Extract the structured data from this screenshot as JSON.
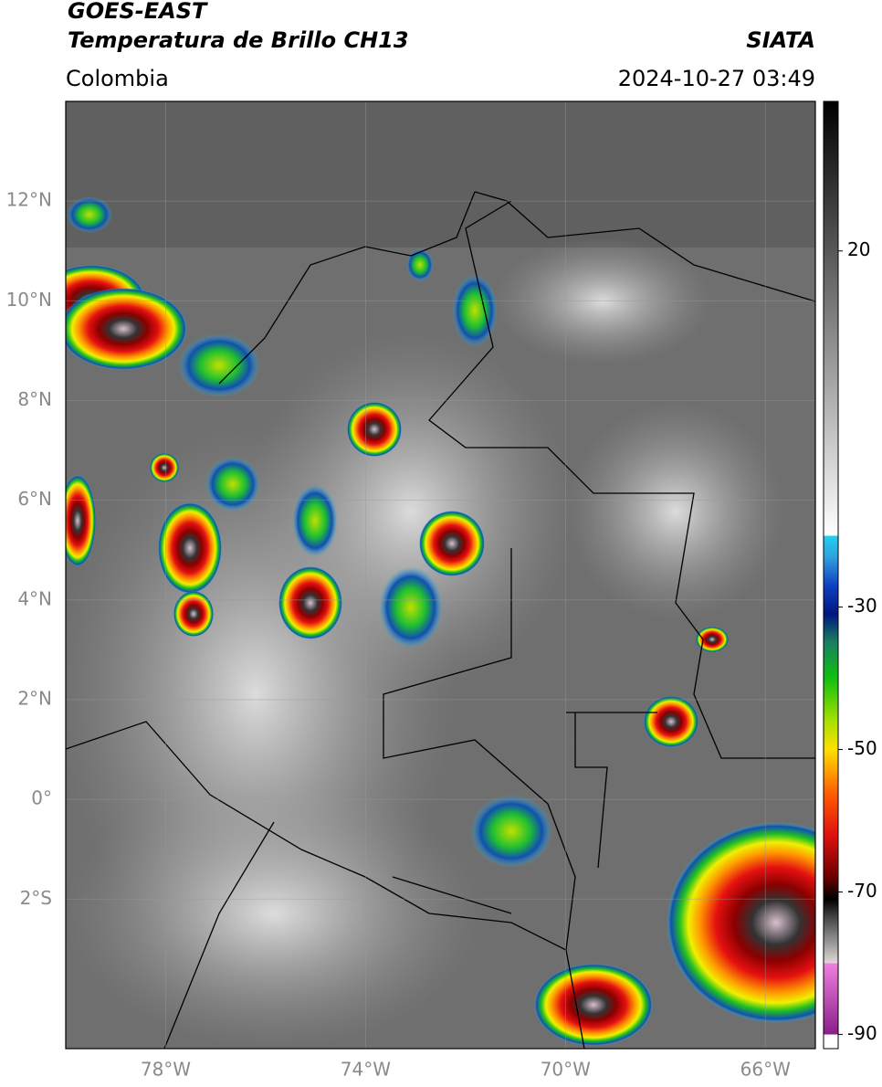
{
  "header": {
    "title": "GOES-EAST",
    "subtitle": "Temperatura de Brillo CH13",
    "source": "SIATA",
    "region": "Colombia",
    "datetime": "2024-10-27 03:49"
  },
  "map": {
    "xlim": [
      -80,
      -65
    ],
    "ylim": [
      -5,
      14
    ],
    "xticks": [
      {
        "value": -78,
        "label": "78°W"
      },
      {
        "value": -74,
        "label": "74°W"
      },
      {
        "value": -70,
        "label": "70°W"
      },
      {
        "value": -66,
        "label": "66°W"
      }
    ],
    "yticks": [
      {
        "value": 12,
        "label": "12°N"
      },
      {
        "value": 10,
        "label": "10°N"
      },
      {
        "value": 8,
        "label": "8°N"
      },
      {
        "value": 6,
        "label": "6°N"
      },
      {
        "value": 4,
        "label": "4°N"
      },
      {
        "value": 2,
        "label": "2°N"
      },
      {
        "value": 0,
        "label": "0°"
      },
      {
        "value": -2,
        "label": "2°S"
      }
    ],
    "grid": true
  },
  "colorbar": {
    "lim": [
      -92,
      41
    ],
    "ticks": [
      20,
      -30,
      -50,
      -70,
      -90
    ],
    "stops": [
      {
        "value": -92,
        "color": "#ffffff"
      },
      {
        "value": -90,
        "color": "#ffffff"
      },
      {
        "value": -90,
        "color": "#8a1f8a"
      },
      {
        "value": -80,
        "color": "#f080e0"
      },
      {
        "value": -80,
        "color": "#e0d8d8"
      },
      {
        "value": -74,
        "color": "#505050"
      },
      {
        "value": -71,
        "color": "#000000"
      },
      {
        "value": -68,
        "color": "#6a0000"
      },
      {
        "value": -62,
        "color": "#e01010"
      },
      {
        "value": -56,
        "color": "#ff6000"
      },
      {
        "value": -50,
        "color": "#ffe000"
      },
      {
        "value": -46,
        "color": "#a8e000"
      },
      {
        "value": -40,
        "color": "#10c010"
      },
      {
        "value": -35,
        "color": "#1a8060"
      },
      {
        "value": -31,
        "color": "#001880"
      },
      {
        "value": -27,
        "color": "#1040c0"
      },
      {
        "value": -23,
        "color": "#30a0e0"
      },
      {
        "value": -20,
        "color": "#20d0f0"
      },
      {
        "value": -20,
        "color": "#ffffff"
      },
      {
        "value": 41,
        "color": "#000000"
      }
    ]
  }
}
